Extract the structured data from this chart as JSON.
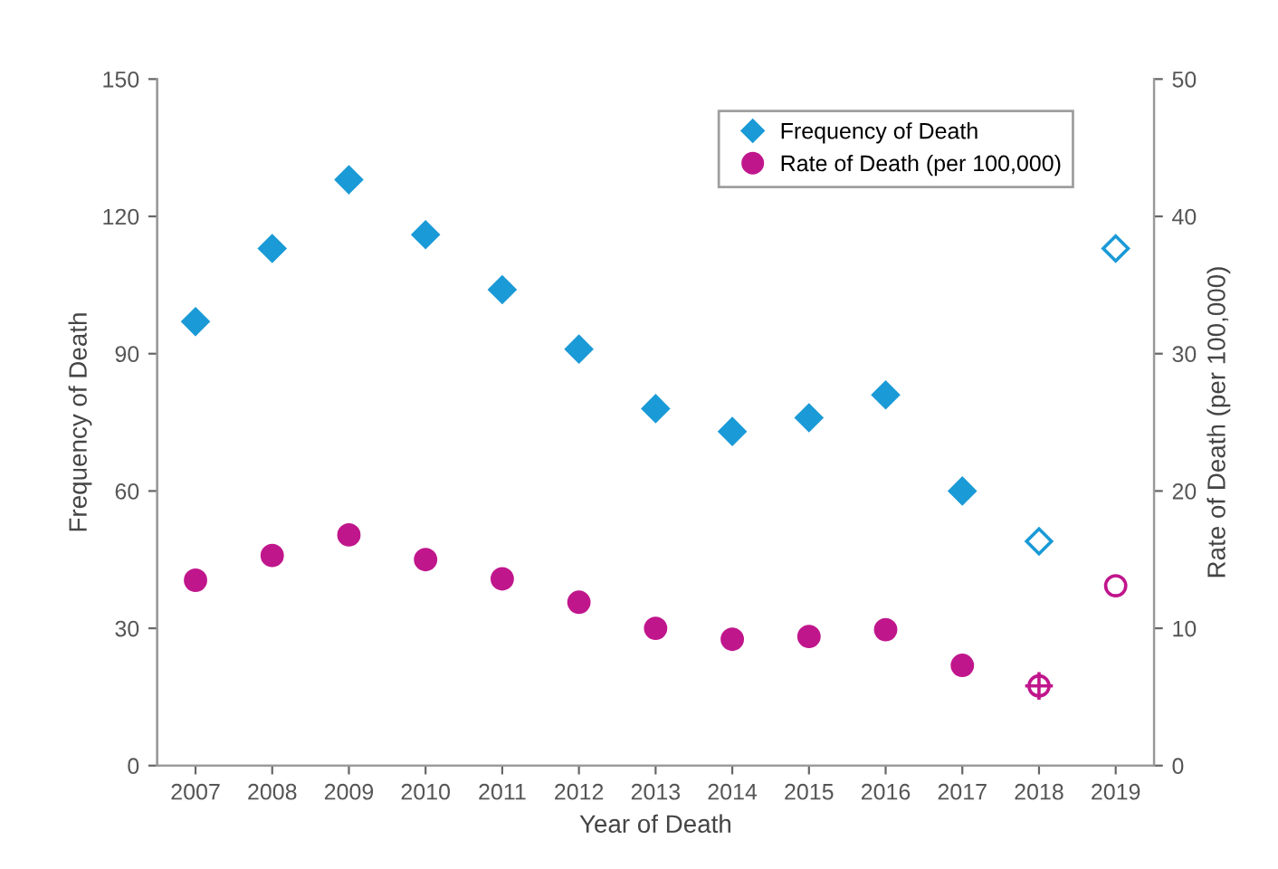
{
  "chart_data": {
    "type": "scatter",
    "xlabel": "Year of Death",
    "ylabel": "Frequency of Death",
    "y2label": "Rate of Death (per 100,000)",
    "categories": [
      "2007",
      "2008",
      "2009",
      "2010",
      "2011",
      "2012",
      "2013",
      "2014",
      "2015",
      "2016",
      "2017",
      "2018",
      "2019"
    ],
    "series": [
      {
        "name": "Frequency of Death",
        "color": "#1a9ad6",
        "marker": "diamond",
        "values": [
          97,
          113,
          128,
          116,
          104,
          91,
          78,
          73,
          76,
          81,
          60,
          null,
          null
        ]
      },
      {
        "name": "Rate of Death (per 100,000)",
        "color": "#c0168c",
        "marker": "circle",
        "axis": "y2",
        "values": [
          13.5,
          15.3,
          16.8,
          15.0,
          13.6,
          11.9,
          10.0,
          9.2,
          9.4,
          9.9,
          7.3,
          null,
          null
        ]
      },
      {
        "color": "#1a9ad6",
        "marker": "diamond",
        "values": [
          null,
          null,
          null,
          null,
          null,
          null,
          null,
          null,
          null,
          null,
          null,
          49,
          113
        ]
      },
      {
        "color": "#c0168c",
        "marker": "circle",
        "axis": "y2",
        "values": [
          null,
          null,
          null,
          null,
          null,
          null,
          null,
          null,
          null,
          null,
          null,
          5.8,
          13.1
        ]
      },
      {
        "color": "#c0168c",
        "marker": "cross",
        "axis": "y2",
        "values": [
          null,
          null,
          null,
          null,
          null,
          null,
          null,
          null,
          null,
          null,
          null,
          5.8,
          null
        ]
      }
    ],
    "ylim": [
      0,
      150
    ],
    "yticks": [
      0,
      30,
      60,
      90,
      120,
      150
    ],
    "y2lim": [
      0,
      50
    ],
    "y2ticks": [
      0,
      10,
      20,
      30,
      40,
      50
    ],
    "grid": false,
    "legend": "top right"
  }
}
